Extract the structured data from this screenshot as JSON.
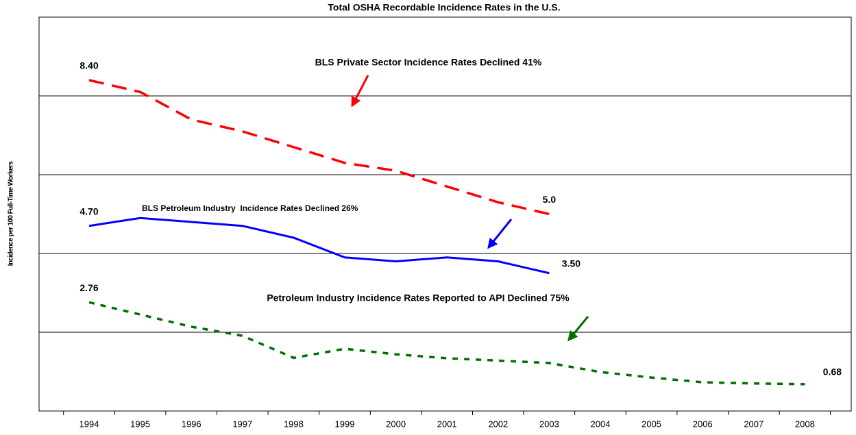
{
  "chart_data": {
    "type": "line",
    "title": "Total OSHA Recordable Incidence Rates in the U.S.",
    "y_label": "Incidence per 100 Full-Time Workers",
    "categories": [
      "1994",
      "1995",
      "1996",
      "1997",
      "1998",
      "1999",
      "2000",
      "2001",
      "2002",
      "2003",
      "2004",
      "2005",
      "2006",
      "2007",
      "2008"
    ],
    "ylim": [
      0,
      10
    ],
    "yticks": [
      0,
      2,
      4,
      6,
      8,
      10
    ],
    "grid": true,
    "series": [
      {
        "name": "BLS Private Sector",
        "color": "#ff0000",
        "dash": "dashed",
        "values": [
          8.4,
          8.1,
          7.4,
          7.1,
          6.7,
          6.3,
          6.1,
          5.7,
          5.3,
          5.0,
          null,
          null,
          null,
          null,
          null
        ],
        "value_labels": [
          "8.40",
          null,
          null,
          null,
          null,
          null,
          null,
          null,
          null,
          "5.0",
          null,
          null,
          null,
          null,
          null
        ]
      },
      {
        "name": "BLS Petroleum Industry",
        "color": "#0000ff",
        "dash": "solid",
        "values": [
          4.7,
          4.9,
          4.8,
          4.7,
          4.4,
          3.9,
          3.8,
          3.9,
          3.8,
          3.5,
          null,
          null,
          null,
          null,
          null
        ],
        "value_labels": [
          "4.70",
          null,
          null,
          null,
          null,
          null,
          null,
          null,
          null,
          "3.50",
          null,
          null,
          null,
          null,
          null
        ]
      },
      {
        "name": "Petroleum Industry reported to API",
        "color": "#007000",
        "dash": "dotted",
        "values": [
          2.76,
          2.45,
          2.14,
          1.91,
          1.35,
          1.58,
          1.44,
          1.34,
          1.28,
          1.22,
          0.99,
          0.85,
          0.73,
          0.7,
          0.68
        ],
        "value_labels": [
          "2.76",
          null,
          null,
          null,
          null,
          null,
          null,
          null,
          null,
          null,
          null,
          null,
          null,
          null,
          "0.68"
        ]
      }
    ],
    "annotations": [
      {
        "text": "BLS Private Sector Incidence Rates Declined 41%"
      },
      {
        "text": "BLS Petroleum Industry  Incidence Rates Declined 26%"
      },
      {
        "text": "Petroleum Industry Incidence Rates Reported to API Declined 75%"
      }
    ]
  }
}
